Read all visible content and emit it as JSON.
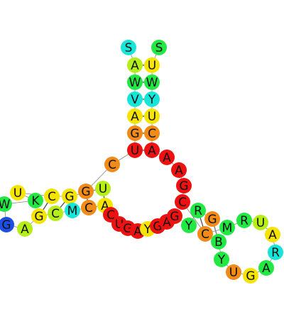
{
  "diagram": {
    "type": "rna-secondary-structure",
    "colors": {
      "red": "#ee1111",
      "orange": "#f08a18",
      "yellow": "#f4e400",
      "yellowgreen": "#b6ee1a",
      "green": "#22e844",
      "cyan": "#16e6d8",
      "blue": "#1b4fe6"
    },
    "nucleotides": [
      {
        "label": "S",
        "color": "cyan"
      },
      {
        "label": "S",
        "color": "green"
      },
      {
        "label": "A",
        "color": "yellowgreen"
      },
      {
        "label": "U",
        "color": "yellow"
      },
      {
        "label": "W",
        "color": "green"
      },
      {
        "label": "W",
        "color": "green"
      },
      {
        "label": "V",
        "color": "cyan"
      },
      {
        "label": "Y",
        "color": "cyan"
      },
      {
        "label": "A",
        "color": "yellow"
      },
      {
        "label": "U",
        "color": "yellow"
      },
      {
        "label": "G",
        "color": "orange"
      },
      {
        "label": "C",
        "color": "orange"
      },
      {
        "label": "U",
        "color": "red"
      },
      {
        "label": "A",
        "color": "red"
      },
      {
        "label": "C",
        "color": "orange"
      },
      {
        "label": "A",
        "color": "red"
      },
      {
        "label": "A",
        "color": "red"
      },
      {
        "label": "G",
        "color": "red"
      },
      {
        "label": "C",
        "color": "red"
      },
      {
        "label": "G",
        "color": "orange"
      },
      {
        "label": "U",
        "color": "yellowgreen"
      },
      {
        "label": "C",
        "color": "yellow"
      },
      {
        "label": "G",
        "color": "yellow"
      },
      {
        "label": "K",
        "color": "green"
      },
      {
        "label": "U",
        "color": "yellow"
      },
      {
        "label": "W",
        "color": "green"
      },
      {
        "label": "G",
        "color": "blue"
      },
      {
        "label": "A",
        "color": "yellowgreen"
      },
      {
        "label": "G",
        "color": "yellow"
      },
      {
        "label": "C",
        "color": "yellowgreen"
      },
      {
        "label": "M",
        "color": "cyan"
      },
      {
        "label": "C",
        "color": "orange"
      },
      {
        "label": "A",
        "color": "yellow"
      },
      {
        "label": "C",
        "color": "red"
      },
      {
        "label": "U",
        "color": "red"
      },
      {
        "label": "G",
        "color": "red"
      },
      {
        "label": "A",
        "color": "red"
      },
      {
        "label": "Y",
        "color": "yellow"
      },
      {
        "label": "G",
        "color": "red"
      },
      {
        "label": "A",
        "color": "red"
      },
      {
        "label": "G",
        "color": "red"
      },
      {
        "label": "Y",
        "color": "green"
      },
      {
        "label": "R",
        "color": "green"
      },
      {
        "label": "C",
        "color": "orange"
      },
      {
        "label": "G",
        "color": "orange"
      },
      {
        "label": "M",
        "color": "green"
      },
      {
        "label": "B",
        "color": "green"
      },
      {
        "label": "R",
        "color": "green"
      },
      {
        "label": "U",
        "color": "yellowgreen"
      },
      {
        "label": "A",
        "color": "yellow"
      },
      {
        "label": "R",
        "color": "cyan"
      },
      {
        "label": "A",
        "color": "green"
      },
      {
        "label": "G",
        "color": "yellow"
      },
      {
        "label": "U",
        "color": "orange"
      },
      {
        "label": "Y",
        "color": "green"
      }
    ]
  }
}
